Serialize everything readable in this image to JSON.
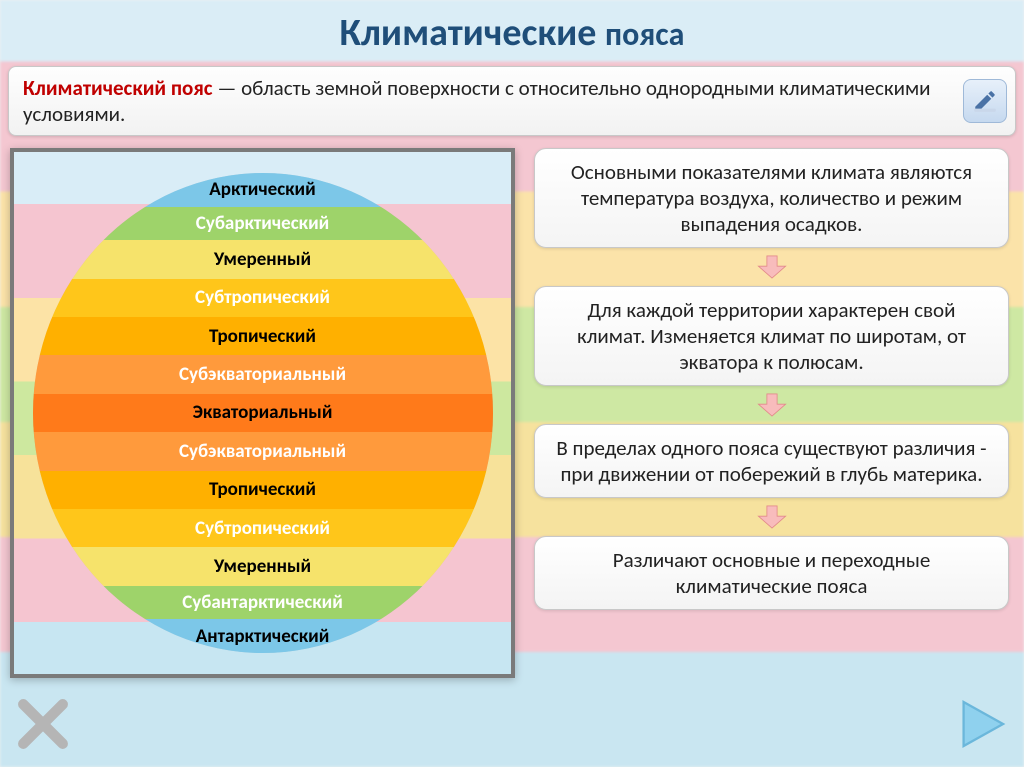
{
  "title_color": "#1f4e79",
  "title_part1": "Климатические",
  "title_part2": "пояса",
  "definition": {
    "term": "Климатический пояс",
    "text": " — область земной поверхности с относительно однородными климатическими условиями."
  },
  "globe": {
    "bands": [
      {
        "label": "Арктический",
        "color": "#7cc7e8",
        "text": "#000000",
        "h": 7
      },
      {
        "label": "Субарктический",
        "color": "#9ed36a",
        "text": "#ffffff",
        "h": 7
      },
      {
        "label": "Умеренный",
        "color": "#f6e36b",
        "text": "#000000",
        "h": 8
      },
      {
        "label": "Субтропический",
        "color": "#ffc61a",
        "text": "#ffffff",
        "h": 8
      },
      {
        "label": "Тропический",
        "color": "#ffb000",
        "text": "#000000",
        "h": 8
      },
      {
        "label": "Субэкваториальный",
        "color": "#ff9a3c",
        "text": "#ffffff",
        "h": 8
      },
      {
        "label": "Экваториальный",
        "color": "#ff7a1a",
        "text": "#000000",
        "h": 8
      },
      {
        "label": "Субэкваториальный",
        "color": "#ff9a3c",
        "text": "#ffffff",
        "h": 8
      },
      {
        "label": "Тропический",
        "color": "#ffb000",
        "text": "#000000",
        "h": 8
      },
      {
        "label": "Субтропический",
        "color": "#ffc61a",
        "text": "#ffffff",
        "h": 8
      },
      {
        "label": "Умеренный",
        "color": "#f6e36b",
        "text": "#000000",
        "h": 8
      },
      {
        "label": "Субантарктический",
        "color": "#9ed36a",
        "text": "#ffffff",
        "h": 7
      },
      {
        "label": "Антарктический",
        "color": "#7cc7e8",
        "text": "#000000",
        "h": 7
      }
    ]
  },
  "flow": {
    "arrow_fill": "#f8bcbc",
    "arrow_stroke": "#e28a8a",
    "cards": [
      "Основными показателями климата являются температура воздуха, количество и режим выпадения осадков.",
      "Для каждой территории характерен свой климат. Изменяется климат по широтам, от экватора к полюсам.",
      "В пределах одного пояса существуют различия - при движении от побережий в глубь материка.",
      "Различают основные и переходные климатические пояса"
    ]
  },
  "icons": {
    "edit": "edit-icon",
    "close": "close-icon",
    "next": "next-icon"
  }
}
